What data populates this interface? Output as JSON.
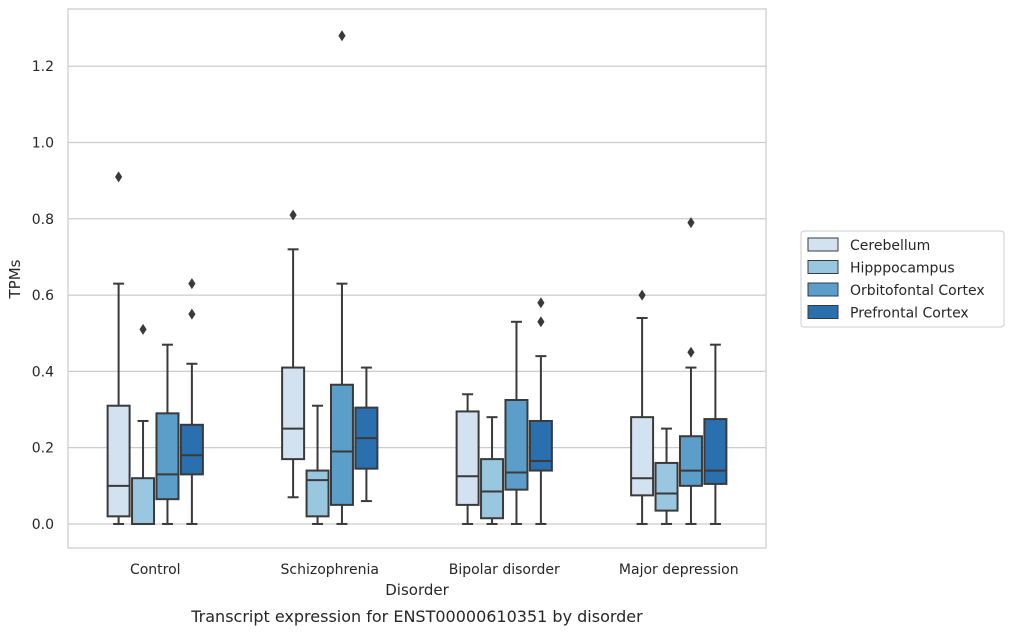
{
  "chart_data": {
    "type": "box",
    "caption": "Transcript expression for ENST00000610351 by disorder",
    "xlabel": "Disorder",
    "ylabel": "TPMs",
    "ylim": [
      -0.063,
      1.35
    ],
    "yticks": [
      0.0,
      0.2,
      0.4,
      0.6,
      0.8,
      1.0,
      1.2
    ],
    "ytick_labels": [
      "0.0",
      "0.2",
      "0.4",
      "0.6",
      "0.8",
      "1.0",
      "1.2"
    ],
    "grid": "horizontal",
    "legend_position": "right",
    "categories": [
      "Control",
      "Schizophrenia",
      "Bipolar disorder",
      "Major depression"
    ],
    "series": [
      {
        "name": "Cerebellum",
        "color": "#d2e2f1",
        "boxes": [
          {
            "whislo": 0.0,
            "q1": 0.02,
            "med": 0.1,
            "q3": 0.31,
            "whishi": 0.63,
            "fliers": [
              0.91
            ]
          },
          {
            "whislo": 0.07,
            "q1": 0.17,
            "med": 0.25,
            "q3": 0.41,
            "whishi": 0.72,
            "fliers": [
              0.81
            ]
          },
          {
            "whislo": 0.0,
            "q1": 0.05,
            "med": 0.125,
            "q3": 0.295,
            "whishi": 0.34,
            "fliers": []
          },
          {
            "whislo": 0.0,
            "q1": 0.075,
            "med": 0.12,
            "q3": 0.28,
            "whishi": 0.54,
            "fliers": [
              0.6
            ]
          }
        ]
      },
      {
        "name": "Hipppocampus",
        "color": "#9ac7e0",
        "boxes": [
          {
            "whislo": 0.0,
            "q1": 0.0,
            "med": 0.0,
            "q3": 0.12,
            "whishi": 0.27,
            "fliers": [
              0.51
            ]
          },
          {
            "whislo": 0.0,
            "q1": 0.02,
            "med": 0.115,
            "q3": 0.14,
            "whishi": 0.31,
            "fliers": []
          },
          {
            "whislo": 0.0,
            "q1": 0.015,
            "med": 0.085,
            "q3": 0.17,
            "whishi": 0.28,
            "fliers": []
          },
          {
            "whislo": 0.0,
            "q1": 0.035,
            "med": 0.08,
            "q3": 0.16,
            "whishi": 0.25,
            "fliers": []
          }
        ]
      },
      {
        "name": "Orbitofontal Cortex",
        "color": "#5a9ec9",
        "boxes": [
          {
            "whislo": 0.0,
            "q1": 0.065,
            "med": 0.13,
            "q3": 0.29,
            "whishi": 0.47,
            "fliers": []
          },
          {
            "whislo": 0.0,
            "q1": 0.05,
            "med": 0.19,
            "q3": 0.365,
            "whishi": 0.63,
            "fliers": [
              1.28
            ]
          },
          {
            "whislo": 0.0,
            "q1": 0.09,
            "med": 0.135,
            "q3": 0.325,
            "whishi": 0.53,
            "fliers": []
          },
          {
            "whislo": 0.0,
            "q1": 0.1,
            "med": 0.14,
            "q3": 0.23,
            "whishi": 0.41,
            "fliers": [
              0.45,
              0.79
            ]
          }
        ]
      },
      {
        "name": "Prefrontal Cortex",
        "color": "#2a6fae",
        "boxes": [
          {
            "whislo": 0.0,
            "q1": 0.13,
            "med": 0.18,
            "q3": 0.26,
            "whishi": 0.42,
            "fliers": [
              0.55,
              0.63
            ]
          },
          {
            "whislo": 0.06,
            "q1": 0.145,
            "med": 0.225,
            "q3": 0.305,
            "whishi": 0.41,
            "fliers": []
          },
          {
            "whislo": 0.0,
            "q1": 0.14,
            "med": 0.165,
            "q3": 0.27,
            "whishi": 0.44,
            "fliers": [
              0.53,
              0.58
            ]
          },
          {
            "whislo": 0.0,
            "q1": 0.105,
            "med": 0.14,
            "q3": 0.275,
            "whishi": 0.47,
            "fliers": []
          }
        ]
      }
    ]
  }
}
